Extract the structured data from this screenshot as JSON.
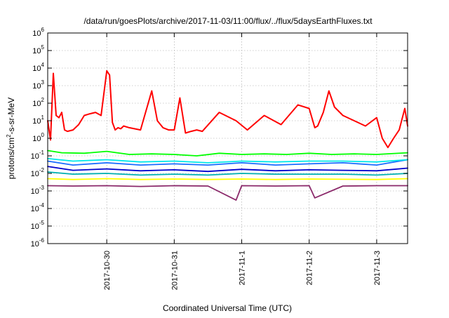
{
  "chart_data": {
    "type": "line",
    "title": "/data/run/goesPlots/archive/2017-11-03/11:00/flux/../flux/5daysEarthFluxes.txt",
    "xlabel": "Coordinated Universal Time (UTC)",
    "ylabel_parts": [
      "protons/cm",
      "2",
      "-s-sr-MeV"
    ],
    "x_axis": {
      "type": "date",
      "range": [
        "2017-10-29 03:00",
        "2017-11-03 11:00"
      ],
      "ticks": [
        "2017-10-30",
        "2017-10-31",
        "2017-11-1",
        "2017-11-2",
        "2017-11-3"
      ]
    },
    "y_axis": {
      "scale": "log",
      "range": [
        1e-06,
        1000000.0
      ],
      "tick_base": "10",
      "tick_exponents": [
        "-6",
        "-5",
        "-4",
        "-3",
        "-2",
        "-1",
        "0",
        "1",
        "2",
        "3",
        "4",
        "5",
        "6"
      ]
    },
    "grid": true,
    "legend": "none",
    "series": [
      {
        "color": "#ff0000",
        "x": [
          "2017-10-29 03:00",
          "2017-10-29 04:00",
          "2017-10-29 05:00",
          "2017-10-29 06:00",
          "2017-10-29 07:00",
          "2017-10-29 08:00",
          "2017-10-29 09:00",
          "2017-10-29 10:00",
          "2017-10-29 12:00",
          "2017-10-29 14:00",
          "2017-10-29 16:00",
          "2017-10-29 18:00",
          "2017-10-29 20:00",
          "2017-10-29 22:00",
          "2017-10-30 00:00",
          "2017-10-30 01:00",
          "2017-10-30 02:00",
          "2017-10-30 03:00",
          "2017-10-30 04:00",
          "2017-10-30 05:00",
          "2017-10-30 06:00",
          "2017-10-30 08:00",
          "2017-10-30 12:00",
          "2017-10-30 16:00",
          "2017-10-30 18:00",
          "2017-10-30 20:00",
          "2017-10-30 22:00",
          "2017-10-31 00:00",
          "2017-10-31 02:00",
          "2017-10-31 04:00",
          "2017-10-31 06:00",
          "2017-10-31 08:00",
          "2017-10-31 10:00",
          "2017-10-31 16:00",
          "2017-10-31 22:00",
          "2017-11-01 02:00",
          "2017-11-01 08:00",
          "2017-11-01 14:00",
          "2017-11-01 20:00",
          "2017-11-02 00:00",
          "2017-11-02 02:00",
          "2017-11-02 03:00",
          "2017-11-02 05:00",
          "2017-11-02 07:00",
          "2017-11-02 09:00",
          "2017-11-02 12:00",
          "2017-11-02 16:00",
          "2017-11-02 20:00",
          "2017-11-03 00:00",
          "2017-11-03 02:00",
          "2017-11-03 04:00",
          "2017-11-03 06:00",
          "2017-11-03 08:00",
          "2017-11-03 10:00",
          "2017-11-03 11:00"
        ],
        "y": [
          10,
          0.8,
          5000,
          20,
          15,
          30,
          3,
          2.5,
          3,
          6,
          20,
          25,
          30,
          20,
          7000,
          4000,
          8,
          3,
          4,
          3.5,
          5,
          4,
          3,
          500,
          10,
          4,
          3,
          3,
          200,
          2,
          2.5,
          3,
          2.5,
          30,
          10,
          3,
          20,
          6,
          80,
          50,
          4,
          5,
          30,
          500,
          60,
          20,
          10,
          5,
          15,
          1,
          0.3,
          1,
          3,
          50,
          5
        ]
      },
      {
        "color": "#00ff00",
        "x": [
          "2017-10-29 03:00",
          "2017-10-29 08:00",
          "2017-10-29 16:00",
          "2017-10-30 00:00",
          "2017-10-30 08:00",
          "2017-10-30 16:00",
          "2017-10-31 00:00",
          "2017-10-31 08:00",
          "2017-10-31 16:00",
          "2017-11-01 00:00",
          "2017-11-01 08:00",
          "2017-11-01 16:00",
          "2017-11-02 00:00",
          "2017-11-02 08:00",
          "2017-11-02 16:00",
          "2017-11-03 00:00",
          "2017-11-03 11:00"
        ],
        "y": [
          0.2,
          0.15,
          0.14,
          0.18,
          0.12,
          0.13,
          0.12,
          0.1,
          0.14,
          0.12,
          0.13,
          0.12,
          0.14,
          0.12,
          0.13,
          0.12,
          0.15
        ]
      },
      {
        "color": "#00e8e8",
        "x": [
          "2017-10-29 03:00",
          "2017-10-29 12:00",
          "2017-10-30 00:00",
          "2017-10-30 12:00",
          "2017-10-31 00:00",
          "2017-10-31 12:00",
          "2017-11-01 00:00",
          "2017-11-01 12:00",
          "2017-11-02 00:00",
          "2017-11-02 12:00",
          "2017-11-03 00:00",
          "2017-11-03 11:00"
        ],
        "y": [
          0.07,
          0.05,
          0.06,
          0.045,
          0.05,
          0.04,
          0.05,
          0.045,
          0.05,
          0.05,
          0.045,
          0.06
        ]
      },
      {
        "color": "#1a6cff",
        "x": [
          "2017-10-29 03:00",
          "2017-10-29 12:00",
          "2017-10-30 00:00",
          "2017-10-30 12:00",
          "2017-10-31 00:00",
          "2017-10-31 12:00",
          "2017-11-01 00:00",
          "2017-11-01 12:00",
          "2017-11-02 00:00",
          "2017-11-02 12:00",
          "2017-11-03 00:00",
          "2017-11-03 11:00"
        ],
        "y": [
          0.05,
          0.03,
          0.04,
          0.03,
          0.035,
          0.03,
          0.04,
          0.03,
          0.035,
          0.04,
          0.03,
          0.06
        ]
      },
      {
        "color": "#0000cc",
        "x": [
          "2017-10-29 03:00",
          "2017-10-29 12:00",
          "2017-10-30 00:00",
          "2017-10-30 12:00",
          "2017-10-31 00:00",
          "2017-10-31 12:00",
          "2017-11-01 00:00",
          "2017-11-01 12:00",
          "2017-11-02 00:00",
          "2017-11-02 12:00",
          "2017-11-03 00:00",
          "2017-11-03 11:00"
        ],
        "y": [
          0.025,
          0.015,
          0.018,
          0.014,
          0.016,
          0.013,
          0.017,
          0.014,
          0.016,
          0.015,
          0.014,
          0.02
        ]
      },
      {
        "color": "#00b0b0",
        "x": [
          "2017-10-29 03:00",
          "2017-10-29 12:00",
          "2017-10-30 00:00",
          "2017-10-30 12:00",
          "2017-10-31 00:00",
          "2017-10-31 12:00",
          "2017-11-01 00:00",
          "2017-11-01 12:00",
          "2017-11-02 00:00",
          "2017-11-02 12:00",
          "2017-11-03 00:00",
          "2017-11-03 11:00"
        ],
        "y": [
          0.012,
          0.009,
          0.01,
          0.008,
          0.009,
          0.008,
          0.01,
          0.009,
          0.009,
          0.009,
          0.008,
          0.01
        ]
      },
      {
        "color": "#ffff00",
        "x": [
          "2017-10-29 03:00",
          "2017-10-29 12:00",
          "2017-10-30 00:00",
          "2017-10-30 12:00",
          "2017-10-31 00:00",
          "2017-10-31 12:00",
          "2017-11-01 00:00",
          "2017-11-01 12:00",
          "2017-11-02 00:00",
          "2017-11-02 12:00",
          "2017-11-03 00:00",
          "2017-11-03 11:00"
        ],
        "y": [
          0.005,
          0.0045,
          0.005,
          0.0045,
          0.0048,
          0.0045,
          0.0048,
          0.0045,
          0.0048,
          0.0046,
          0.0045,
          0.005
        ]
      },
      {
        "color": "#8b2a6b",
        "x": [
          "2017-10-29 03:00",
          "2017-10-29 12:00",
          "2017-10-30 00:00",
          "2017-10-30 12:00",
          "2017-10-31 00:00",
          "2017-10-31 12:00",
          "2017-10-31 22:00",
          "2017-11-01 00:00",
          "2017-11-01 12:00",
          "2017-11-02 00:00",
          "2017-11-02 02:00",
          "2017-11-02 12:00",
          "2017-11-03 00:00",
          "2017-11-03 11:00"
        ],
        "y": [
          0.002,
          0.0019,
          0.002,
          0.0018,
          0.002,
          0.0019,
          0.0003,
          0.002,
          0.0019,
          0.002,
          0.0004,
          0.0019,
          0.002,
          0.002
        ]
      }
    ]
  }
}
